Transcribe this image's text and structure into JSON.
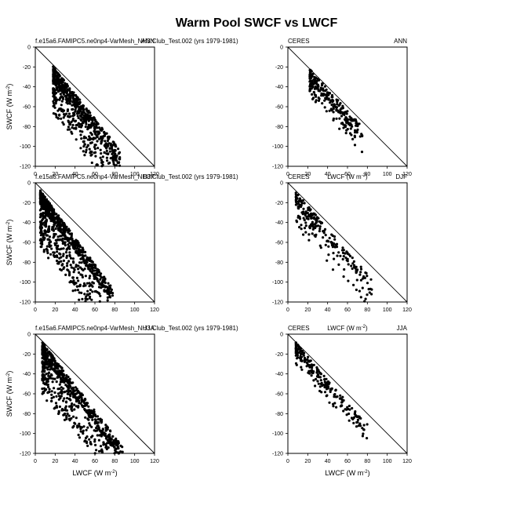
{
  "figure": {
    "title": "Warm Pool SWCF vs LWCF",
    "xlabel_text": "LWCF (W m",
    "ylabel_text": "SWCF (W m",
    "unit_sup": "-2",
    "unit_close": ")"
  },
  "chart_data": [
    {
      "type": "scatter",
      "panel": "model-ann",
      "left_label": "f.e15a6.FAMIPC5.ne0np4-VarMesh_NH3.Club_Test.002 (yrs 1979-1981)",
      "right_label": "ANN",
      "center_label": "",
      "show_ylabel": true,
      "show_xlabel": false,
      "xlim": [
        0,
        120
      ],
      "ylim": [
        -120,
        0
      ],
      "xticks": [
        0,
        20,
        40,
        60,
        80,
        100,
        120
      ],
      "yticks": [
        -120,
        -100,
        -80,
        -60,
        -40,
        -20,
        0
      ],
      "reference_line": "1:1",
      "cloud": {
        "n": 700,
        "x_min": 18,
        "x_max": 85,
        "slope": -1.25,
        "offset": -5,
        "scatter": 8,
        "tail": 35,
        "tail_prob": 0.45,
        "seed": 11
      }
    },
    {
      "type": "scatter",
      "panel": "ceres-ann",
      "left_label": "CERES",
      "right_label": "ANN",
      "center_label": "",
      "show_ylabel": false,
      "show_xlabel": false,
      "xlim": [
        0,
        120
      ],
      "ylim": [
        -120,
        0
      ],
      "xticks": [
        0,
        20,
        40,
        60,
        80,
        100,
        120
      ],
      "yticks": [
        -120,
        -100,
        -80,
        -60,
        -40,
        -20,
        0
      ],
      "reference_line": "1:1",
      "cloud": {
        "n": 260,
        "x_min": 22,
        "x_max": 75,
        "slope": -1.1,
        "offset": -4,
        "scatter": 6,
        "tail": 18,
        "tail_prob": 0.35,
        "seed": 23
      }
    },
    {
      "type": "scatter",
      "panel": "model-djf",
      "left_label": "f.e15a6.FAMIPC5.ne0np4-VarMesh_NH3.Club_Test.002 (yrs 1979-1981)",
      "right_label": "DJF",
      "center_label": "",
      "show_ylabel": true,
      "show_xlabel": false,
      "xlim": [
        0,
        120
      ],
      "ylim": [
        -120,
        0
      ],
      "xticks": [
        0,
        20,
        40,
        60,
        80,
        100,
        120
      ],
      "yticks": [
        -120,
        -100,
        -80,
        -60,
        -40,
        -20,
        0
      ],
      "reference_line": "1:1",
      "cloud": {
        "n": 900,
        "x_min": 5,
        "x_max": 78,
        "slope": -1.35,
        "offset": -8,
        "scatter": 7,
        "tail": 45,
        "tail_prob": 0.45,
        "seed": 37
      }
    },
    {
      "type": "scatter",
      "panel": "ceres-djf",
      "left_label": "CERES",
      "right_label": "DJF",
      "center_label": "LWCF (W m",
      "show_ylabel": false,
      "show_xlabel": false,
      "xlim": [
        0,
        120
      ],
      "ylim": [
        -120,
        0
      ],
      "xticks": [
        0,
        20,
        40,
        60,
        80,
        100,
        120
      ],
      "yticks": [
        -120,
        -100,
        -80,
        -60,
        -40,
        -20,
        0
      ],
      "reference_line": "1:1",
      "cloud": {
        "n": 230,
        "x_min": 8,
        "x_max": 85,
        "slope": -1.15,
        "offset": -7,
        "scatter": 7,
        "tail": 25,
        "tail_prob": 0.35,
        "seed": 51
      }
    },
    {
      "type": "scatter",
      "panel": "model-jja",
      "left_label": "f.e15a6.FAMIPC5.ne0np4-VarMesh_NH3.Club_Test.002 (yrs 1979-1981)",
      "right_label": "JJA",
      "center_label": "",
      "show_ylabel": true,
      "show_xlabel": true,
      "xlim": [
        0,
        120
      ],
      "ylim": [
        -120,
        0
      ],
      "xticks": [
        0,
        20,
        40,
        60,
        80,
        100,
        120
      ],
      "yticks": [
        -120,
        -100,
        -80,
        -60,
        -40,
        -20,
        0
      ],
      "reference_line": "1:1",
      "cloud": {
        "n": 800,
        "x_min": 7,
        "x_max": 88,
        "slope": -1.3,
        "offset": -6,
        "scatter": 7,
        "tail": 40,
        "tail_prob": 0.45,
        "seed": 67
      }
    },
    {
      "type": "scatter",
      "panel": "ceres-jja",
      "left_label": "CERES",
      "right_label": "JJA",
      "center_label": "LWCF (W m",
      "show_ylabel": false,
      "show_xlabel": true,
      "xlim": [
        0,
        120
      ],
      "ylim": [
        -120,
        0
      ],
      "xticks": [
        0,
        20,
        40,
        60,
        80,
        100,
        120
      ],
      "yticks": [
        -120,
        -100,
        -80,
        -60,
        -40,
        -20,
        0
      ],
      "reference_line": "1:1",
      "cloud": {
        "n": 220,
        "x_min": 8,
        "x_max": 80,
        "slope": -1.15,
        "offset": -5,
        "scatter": 6,
        "tail": 15,
        "tail_prob": 0.3,
        "seed": 89
      }
    }
  ]
}
